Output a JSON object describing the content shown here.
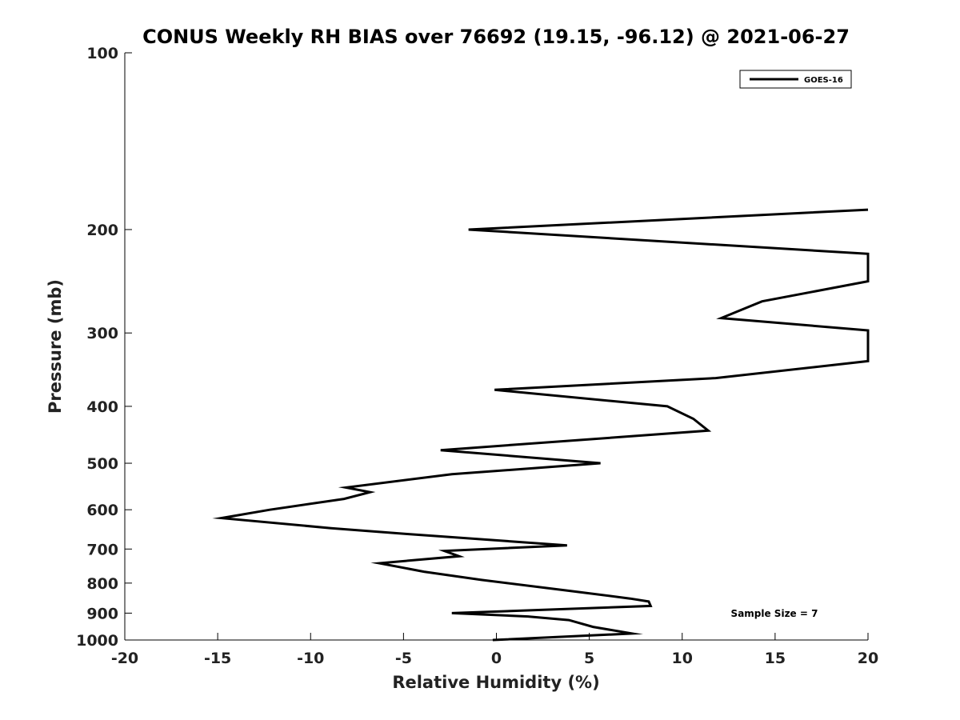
{
  "chart_data": {
    "type": "line",
    "title": "CONUS Weekly RH BIAS over 76692 (19.15, -96.12) @ 2021-06-27",
    "xlabel": "Relative Humidity (%)",
    "ylabel": "Pressure (mb)",
    "xlim": [
      -20,
      20
    ],
    "ylim": [
      1000,
      100
    ],
    "y_scale": "log",
    "x_ticks": [
      -20,
      -15,
      -10,
      -5,
      0,
      5,
      10,
      15,
      20
    ],
    "y_ticks": [
      100,
      200,
      300,
      400,
      500,
      600,
      700,
      800,
      900,
      1000
    ],
    "grid": false,
    "legend": {
      "position": "top-right",
      "entries": [
        "GOES-16"
      ]
    },
    "annotations": [
      "Sample Size = 7"
    ],
    "series": [
      {
        "name": "GOES-16",
        "color": "#000000",
        "points": [
          {
            "x": -0.2,
            "y": 1000
          },
          {
            "x": 7.3,
            "y": 975
          },
          {
            "x": 5.2,
            "y": 950
          },
          {
            "x": 3.9,
            "y": 925
          },
          {
            "x": 1.7,
            "y": 912
          },
          {
            "x": -2.4,
            "y": 900
          },
          {
            "x": 8.3,
            "y": 875
          },
          {
            "x": 8.2,
            "y": 860
          },
          {
            "x": 7.2,
            "y": 850
          },
          {
            "x": 4.0,
            "y": 825
          },
          {
            "x": -0.8,
            "y": 790
          },
          {
            "x": -3.9,
            "y": 765
          },
          {
            "x": -6.3,
            "y": 740
          },
          {
            "x": -2.0,
            "y": 720
          },
          {
            "x": -2.8,
            "y": 705
          },
          {
            "x": 3.8,
            "y": 690
          },
          {
            "x": -4.8,
            "y": 660
          },
          {
            "x": -8.9,
            "y": 645
          },
          {
            "x": -14.8,
            "y": 620
          },
          {
            "x": -12.2,
            "y": 600
          },
          {
            "x": -8.2,
            "y": 575
          },
          {
            "x": -6.8,
            "y": 560
          },
          {
            "x": -8.1,
            "y": 550
          },
          {
            "x": -2.4,
            "y": 522
          },
          {
            "x": 5.6,
            "y": 500
          },
          {
            "x": -3.0,
            "y": 475
          },
          {
            "x": 11.4,
            "y": 440
          },
          {
            "x": 10.6,
            "y": 420
          },
          {
            "x": 9.2,
            "y": 400
          },
          {
            "x": -0.1,
            "y": 375
          },
          {
            "x": 11.8,
            "y": 358
          },
          {
            "x": 20.0,
            "y": 335
          },
          {
            "x": 20.0,
            "y": 297
          },
          {
            "x": 12.1,
            "y": 283
          },
          {
            "x": 14.3,
            "y": 265
          },
          {
            "x": 20.0,
            "y": 245
          },
          {
            "x": 20.0,
            "y": 220
          },
          {
            "x": -1.5,
            "y": 200
          },
          {
            "x": 20.0,
            "y": 185
          }
        ]
      }
    ]
  }
}
